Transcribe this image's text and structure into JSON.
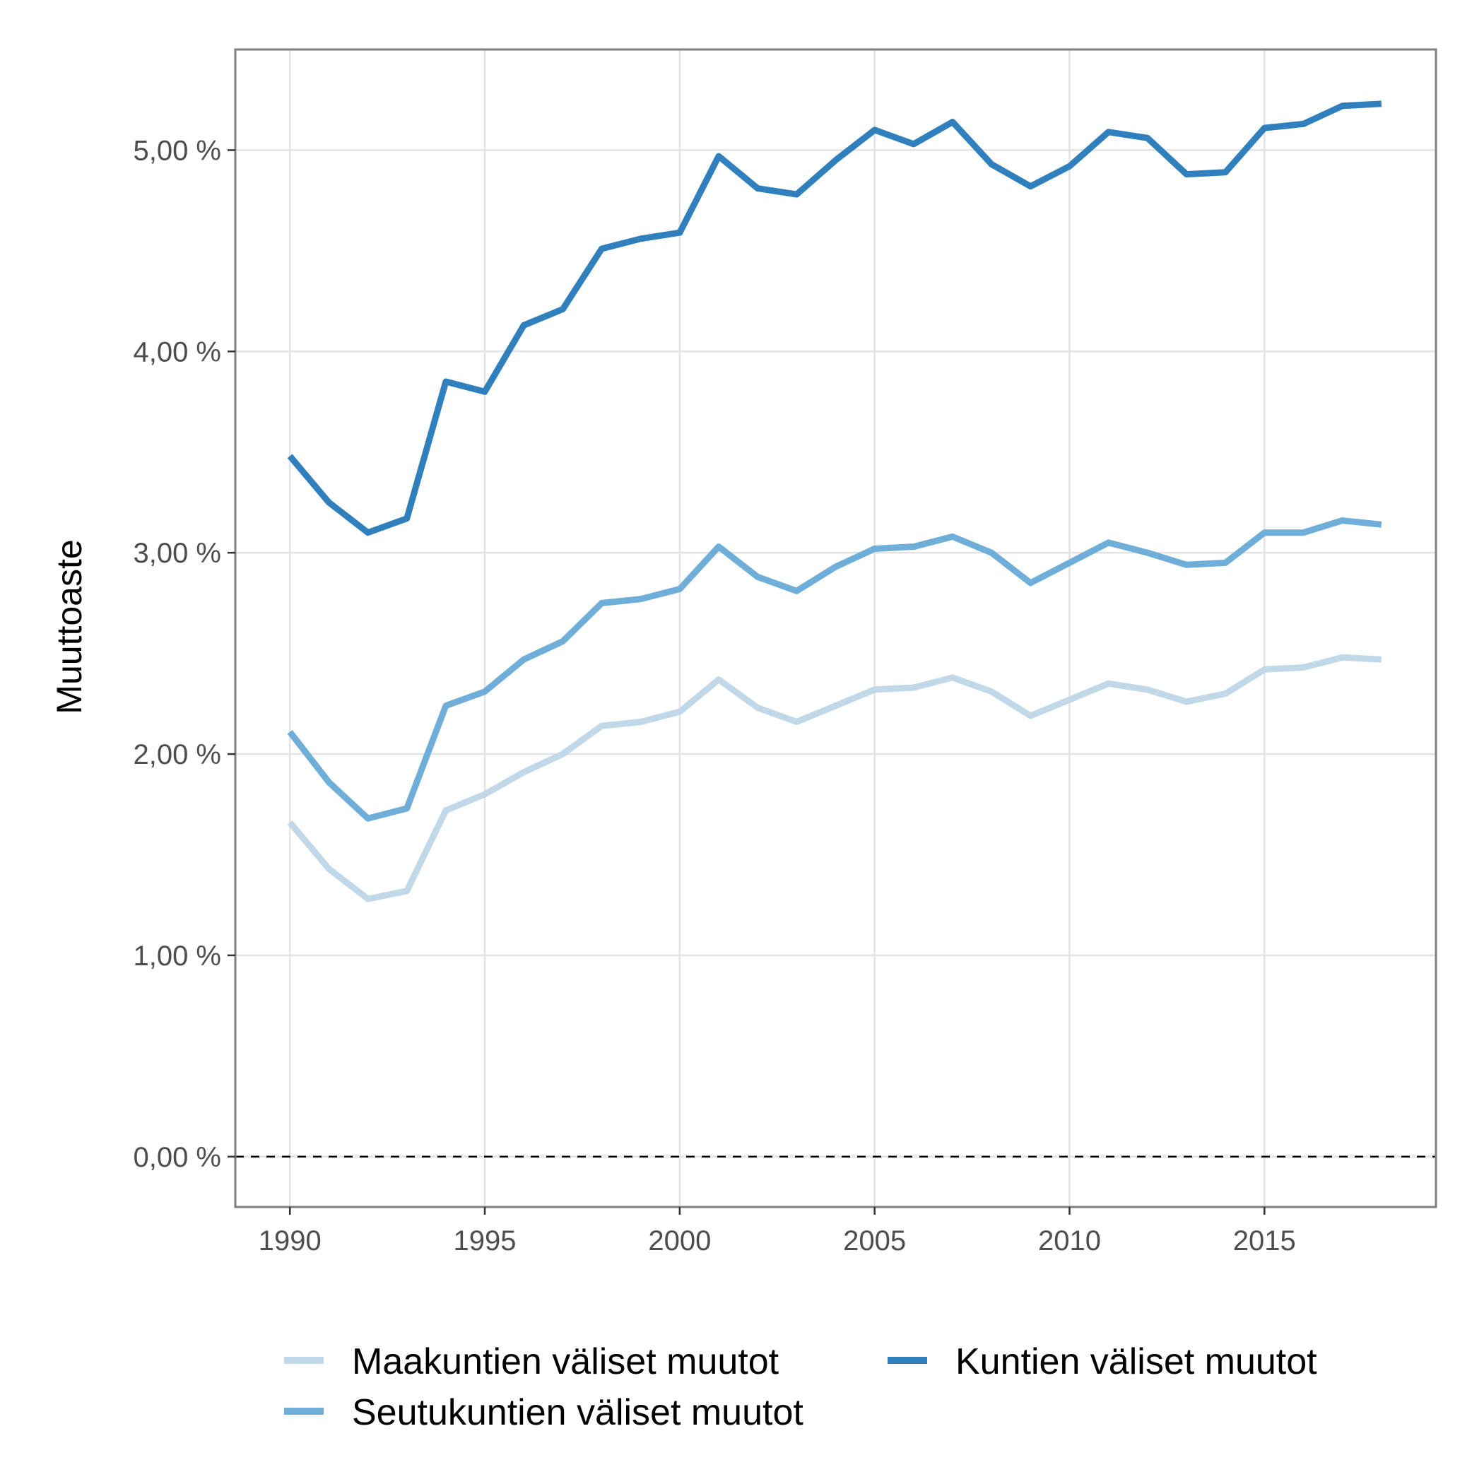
{
  "chart_data": {
    "type": "line",
    "title": "",
    "xlabel": "",
    "ylabel": "Muuttoaste",
    "x": [
      1990,
      1991,
      1992,
      1993,
      1994,
      1995,
      1996,
      1997,
      1998,
      1999,
      2000,
      2001,
      2002,
      2003,
      2004,
      2005,
      2006,
      2007,
      2008,
      2009,
      2010,
      2011,
      2012,
      2013,
      2014,
      2015,
      2016,
      2017,
      2018
    ],
    "xlim": [
      1988.6,
      2019.4
    ],
    "ylim": [
      -0.25,
      5.5
    ],
    "x_ticks": [
      1990,
      1995,
      2000,
      2005,
      2010,
      2015
    ],
    "x_tick_labels": [
      "1990",
      "1995",
      "2000",
      "2005",
      "2010",
      "2015"
    ],
    "y_ticks": [
      0,
      1,
      2,
      3,
      4,
      5
    ],
    "y_tick_labels": [
      "0,00 %",
      "1,00 %",
      "2,00 %",
      "3,00 %",
      "4,00 %",
      "5,00 %"
    ],
    "grid": true,
    "reference_line": {
      "y": 0,
      "style": "dashed",
      "color": "#000000"
    },
    "legend_position": "bottom",
    "series": [
      {
        "name": "Maakuntien väliset muutot",
        "color": "#c0d8e8",
        "values": [
          1.66,
          1.43,
          1.28,
          1.32,
          1.72,
          1.8,
          1.91,
          2.0,
          2.14,
          2.16,
          2.21,
          2.37,
          2.23,
          2.16,
          2.24,
          2.32,
          2.33,
          2.38,
          2.31,
          2.19,
          2.27,
          2.35,
          2.32,
          2.26,
          2.3,
          2.42,
          2.43,
          2.48,
          2.47
        ]
      },
      {
        "name": "Seutukuntien väliset muutot",
        "color": "#6eaed8",
        "values": [
          2.11,
          1.86,
          1.68,
          1.73,
          2.24,
          2.31,
          2.47,
          2.56,
          2.75,
          2.77,
          2.82,
          3.03,
          2.88,
          2.81,
          2.93,
          3.02,
          3.03,
          3.08,
          3.0,
          2.85,
          2.95,
          3.05,
          3.0,
          2.94,
          2.95,
          3.1,
          3.1,
          3.16,
          3.14
        ]
      },
      {
        "name": "Kuntien väliset muutot",
        "color": "#3180be",
        "values": [
          3.48,
          3.25,
          3.1,
          3.17,
          3.85,
          3.8,
          4.13,
          4.21,
          4.51,
          4.56,
          4.59,
          4.97,
          4.81,
          4.78,
          4.95,
          5.1,
          5.03,
          5.14,
          4.93,
          4.82,
          4.92,
          5.09,
          5.06,
          4.88,
          4.89,
          5.11,
          5.13,
          5.22,
          5.23
        ]
      }
    ]
  }
}
